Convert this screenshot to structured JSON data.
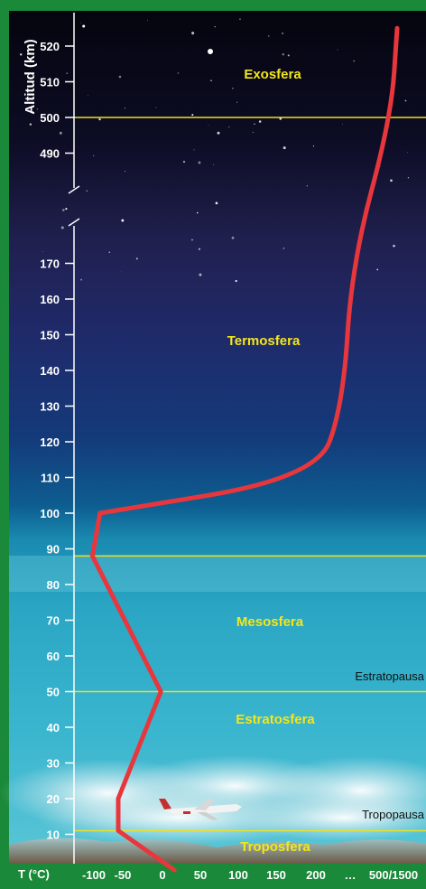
{
  "axis": {
    "ylabel": "Altitud (km)",
    "xlabel": "T (°C)",
    "upper_ticks": [
      "520",
      "510",
      "500",
      "490"
    ],
    "lower_ticks": [
      "170",
      "160",
      "150",
      "140",
      "130",
      "120",
      "110",
      "100",
      "90",
      "80",
      "70",
      "60",
      "50",
      "40",
      "30",
      "20",
      "10"
    ],
    "x_ticks": [
      "-100",
      "-50",
      "0",
      "50",
      "100",
      "150",
      "200",
      "…",
      "500/1500"
    ]
  },
  "layers": {
    "exosfera": "Exosfera",
    "termosfera": "Termosfera",
    "mesosfera": "Mesosfera",
    "estratosfera": "Estratosfera",
    "troposfera": "Troposfera"
  },
  "boundaries": {
    "estratopausa": "Estratopausa",
    "tropopausa": "Tropopausa"
  },
  "temperature_profile": [
    {
      "alt_km": 0,
      "temp_c": 15
    },
    {
      "alt_km": 11,
      "temp_c": -56
    },
    {
      "alt_km": 20,
      "temp_c": -56
    },
    {
      "alt_km": 50,
      "temp_c": -2
    },
    {
      "alt_km": 88,
      "temp_c": -90
    },
    {
      "alt_km": 100,
      "temp_c": -80
    },
    {
      "alt_km": 110,
      "temp_c": 200
    },
    {
      "alt_km": 130,
      "temp_c": 260
    },
    {
      "alt_km": 170,
      "temp_c": 280
    },
    {
      "alt_km": 500,
      "temp_c": 350
    },
    {
      "alt_km": 525,
      "temp_c": 360
    }
  ],
  "colors": {
    "frame": "#1a8a3a",
    "curve": "#e8373c",
    "layer_label": "#f4e61a",
    "boundary_line": "#f0e020"
  }
}
